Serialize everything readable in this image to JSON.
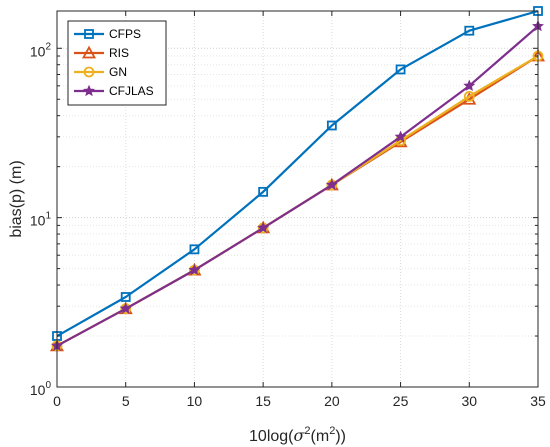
{
  "chart_data": {
    "type": "line",
    "yscale": "log",
    "x": [
      0,
      5,
      10,
      15,
      20,
      25,
      30,
      35
    ],
    "xlim": [
      0,
      35
    ],
    "ylim": [
      1,
      166
    ],
    "xticks": [
      0,
      5,
      10,
      15,
      20,
      25,
      30,
      35
    ],
    "xtick_labels": [
      "0",
      "5",
      "10",
      "15",
      "20",
      "25",
      "30",
      "35"
    ],
    "yticks": [
      1,
      10,
      100
    ],
    "ytick_labels": [
      {
        "base": "10",
        "exp": "0"
      },
      {
        "base": "10",
        "exp": "1"
      },
      {
        "base": "10",
        "exp": "2"
      }
    ],
    "xlabel": {
      "prefix": "10log(",
      "sigma": "σ",
      "sup": "2",
      "suffix": "(m",
      "sup2": "2",
      "close": "))"
    },
    "ylabel": "bias(p) (m)",
    "grid": true,
    "legend_position": "top-left",
    "series": [
      {
        "name": "CFPS",
        "color": "#0072BD",
        "marker": "square",
        "values": [
          2.0,
          3.4,
          6.5,
          14.2,
          35,
          75,
          127,
          166
        ]
      },
      {
        "name": "RIS",
        "color": "#D95319",
        "marker": "triangle",
        "values": [
          1.75,
          2.9,
          4.9,
          8.7,
          15.6,
          28,
          50,
          90
        ]
      },
      {
        "name": "GN",
        "color": "#EDB120",
        "marker": "circle",
        "values": [
          1.75,
          2.9,
          4.9,
          8.7,
          15.6,
          28.5,
          52,
          90
        ]
      },
      {
        "name": "CFJLAS",
        "color": "#7E2F8E",
        "marker": "star",
        "values": [
          1.75,
          2.9,
          4.9,
          8.7,
          15.6,
          30,
          60,
          135
        ]
      }
    ]
  }
}
